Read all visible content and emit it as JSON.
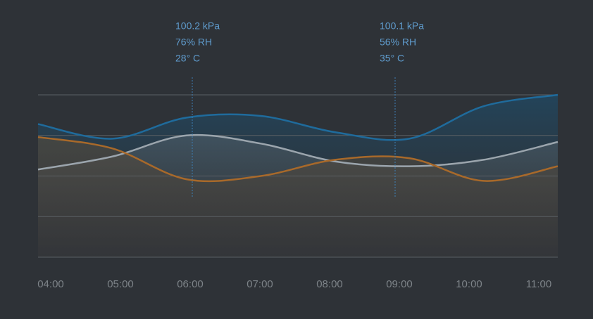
{
  "chart_data": {
    "type": "line",
    "x": [
      "04:00",
      "05:00",
      "06:00",
      "07:00",
      "08:00",
      "09:00",
      "10:00",
      "11:00"
    ],
    "series": [
      {
        "color": "#1f6b9c",
        "values": [
          82,
          73,
          86,
          87,
          77,
          73,
          93,
          100
        ]
      },
      {
        "color": "#9ba5ad",
        "values": [
          54,
          62,
          75,
          70,
          59,
          56,
          60,
          71
        ]
      },
      {
        "color": "#a8692a",
        "values": [
          74,
          67,
          48,
          50,
          60,
          61,
          47,
          56
        ]
      }
    ],
    "ylim": [
      0,
      100
    ],
    "yticks": [
      0,
      25,
      50,
      75,
      100
    ],
    "grid": true,
    "annotations": [
      {
        "lines": [
          "100.2 kPa",
          "76% RH",
          "28° C"
        ]
      },
      {
        "lines": [
          "100.1 kPa",
          "56% RH",
          "35° C"
        ]
      }
    ]
  }
}
